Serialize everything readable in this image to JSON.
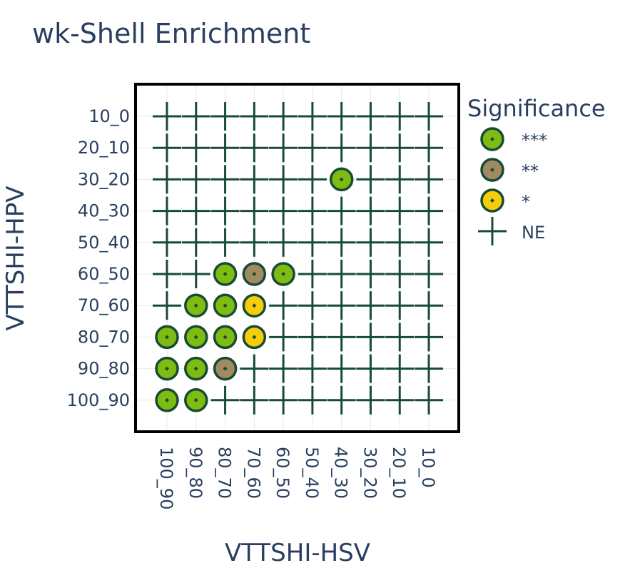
{
  "chart_data": {
    "type": "scatter",
    "title": "wk-Shell Enrichment",
    "xlabel": "VTTSHI-HSV",
    "ylabel": "VTTSHI-HPV",
    "x_categories": [
      "100_90",
      "90_80",
      "80_70",
      "70_60",
      "60_50",
      "50_40",
      "40_30",
      "30_20",
      "20_10",
      "10_0"
    ],
    "y_categories": [
      "10_0",
      "20_10",
      "30_20",
      "40_30",
      "50_40",
      "60_50",
      "70_60",
      "80_70",
      "90_80",
      "100_90"
    ],
    "legend": {
      "title": "Significance",
      "placement": "right",
      "entries": [
        {
          "label": "***",
          "color": "#7fbc11"
        },
        {
          "label": "**",
          "color": "#a08a62"
        },
        {
          "label": "*",
          "color": "#f6cd0b"
        },
        {
          "label": "NE",
          "color": "#174b35"
        }
      ]
    },
    "points": [
      {
        "x": "40_30",
        "y": "30_20",
        "significance": "***"
      },
      {
        "x": "80_70",
        "y": "60_50",
        "significance": "***"
      },
      {
        "x": "70_60",
        "y": "60_50",
        "significance": "**"
      },
      {
        "x": "60_50",
        "y": "60_50",
        "significance": "***"
      },
      {
        "x": "90_80",
        "y": "70_60",
        "significance": "***"
      },
      {
        "x": "80_70",
        "y": "70_60",
        "significance": "***"
      },
      {
        "x": "70_60",
        "y": "70_60",
        "significance": "*"
      },
      {
        "x": "100_90",
        "y": "80_70",
        "significance": "***"
      },
      {
        "x": "90_80",
        "y": "80_70",
        "significance": "***"
      },
      {
        "x": "80_70",
        "y": "80_70",
        "significance": "***"
      },
      {
        "x": "70_60",
        "y": "80_70",
        "significance": "*"
      },
      {
        "x": "100_90",
        "y": "90_80",
        "significance": "***"
      },
      {
        "x": "90_80",
        "y": "90_80",
        "significance": "***"
      },
      {
        "x": "80_70",
        "y": "90_80",
        "significance": "**"
      },
      {
        "x": "100_90",
        "y": "100_90",
        "significance": "***"
      },
      {
        "x": "90_80",
        "y": "100_90",
        "significance": "***"
      }
    ],
    "default_significance": "NE",
    "grid": true
  }
}
